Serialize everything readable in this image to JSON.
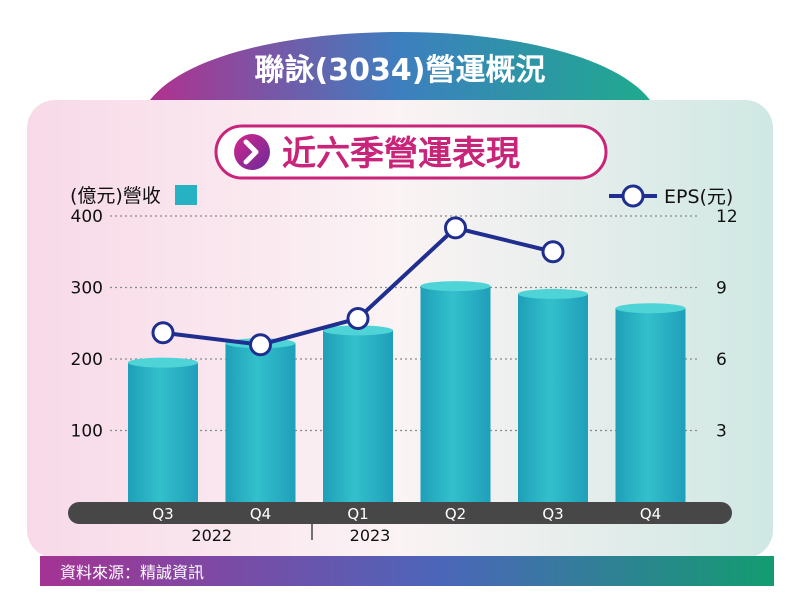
{
  "header": {
    "title": "聯詠(3034)營運概況",
    "subtitle": "近六季營運表現"
  },
  "legend": {
    "revenue_label": "(億元)營收",
    "eps_label": "EPS(元)"
  },
  "footer": {
    "source": "資料來源：精誠資訊"
  },
  "colors": {
    "bar": "#27b2c4",
    "bar_top": "#4ed4d6",
    "line": "#1f2e8f",
    "accent": "#c8247a",
    "header_left": "#b0318f",
    "header_right": "#1faa8e",
    "axis_band": "#474747"
  },
  "chart_data": {
    "type": "bar",
    "categories": [
      "Q3",
      "Q4",
      "Q1",
      "Q2",
      "Q3",
      "Q4"
    ],
    "years": [
      {
        "label": "2022",
        "from": 0,
        "to": 1
      },
      {
        "label": "2023",
        "from": 2,
        "to": 5
      }
    ],
    "series": [
      {
        "name": "營收",
        "axis": "left",
        "type": "bar",
        "values": [
          195,
          222,
          240,
          302,
          291,
          271
        ]
      },
      {
        "name": "EPS",
        "axis": "right",
        "type": "line",
        "values": [
          7.1,
          6.6,
          7.7,
          11.5,
          10.5,
          null
        ]
      }
    ],
    "ylabel_left": "(億元)營收",
    "ylabel_right": "EPS(元)",
    "ylim_left": [
      0,
      400
    ],
    "ylim_right": [
      0,
      12
    ],
    "yticks_left": [
      100,
      200,
      300,
      400
    ],
    "yticks_right": [
      3,
      6,
      9,
      12
    ],
    "grid": true
  }
}
